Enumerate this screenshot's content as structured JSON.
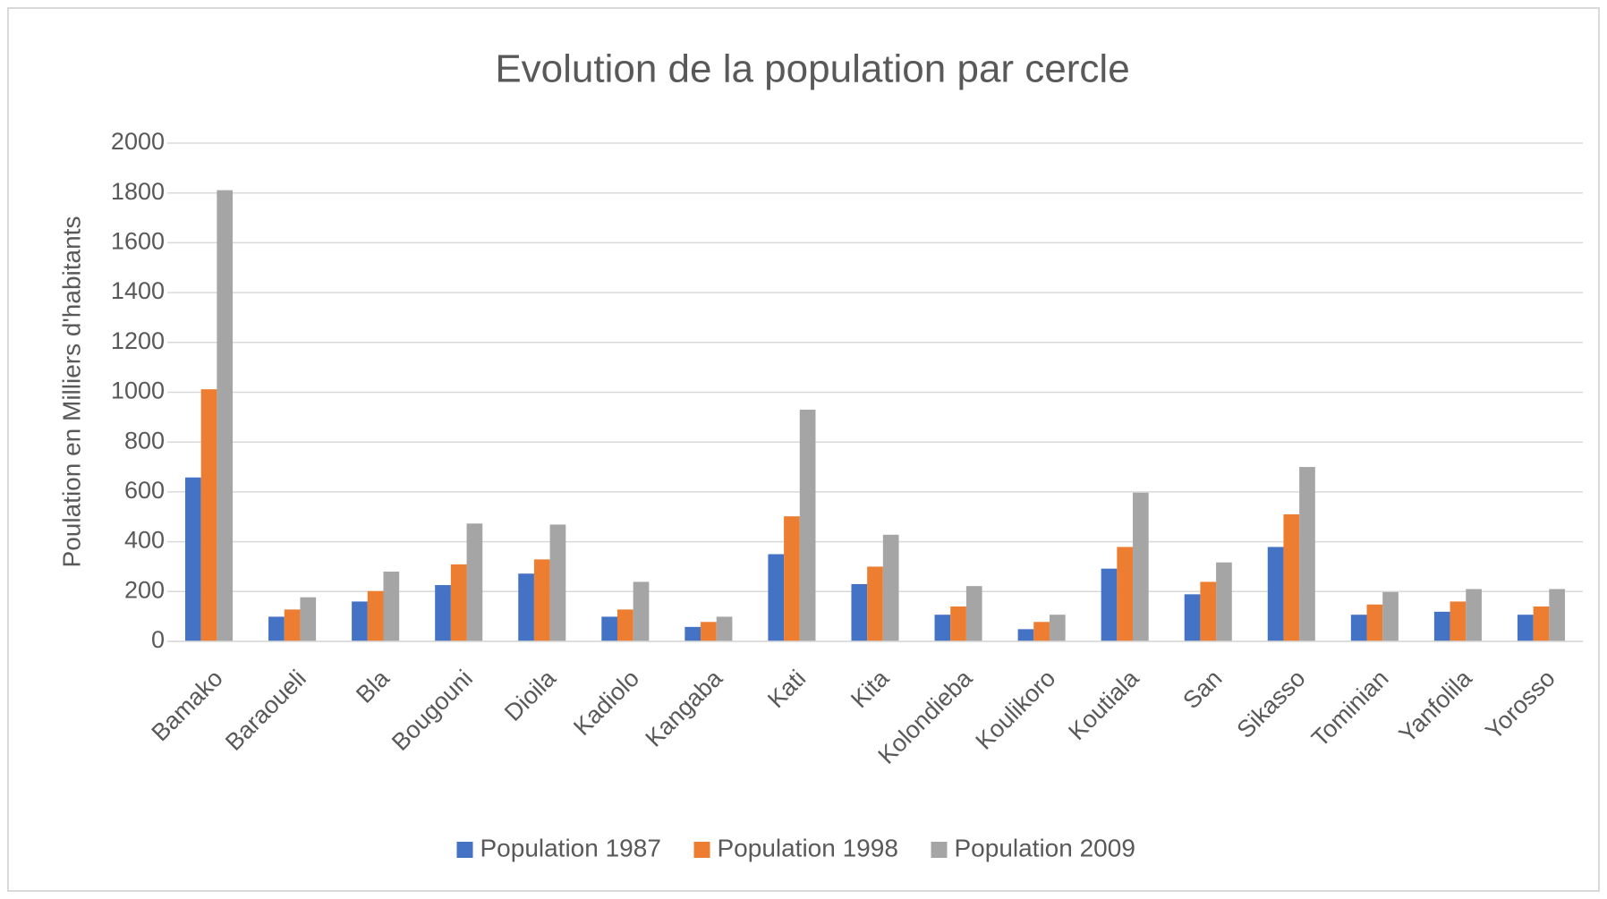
{
  "chart_data": {
    "type": "bar",
    "title": "Evolution de la population par cercle",
    "y_label": "Poulation en Milliers d'habitants",
    "categories": [
      "Bamako",
      "Baraoueli",
      "Bla",
      "Bougouni",
      "Dioila",
      "Kadiolo",
      "Kangaba",
      "Kati",
      "Kita",
      "Kolondieba",
      "Koulikoro",
      "Koutiala",
      "San",
      "Sikasso",
      "Tominian",
      "Yanfolila",
      "Yorosso"
    ],
    "series": [
      {
        "name": "Population 1987",
        "color": "#4472c4",
        "values": [
          658,
          99,
          160,
          226,
          272,
          99,
          58,
          350,
          230,
          107,
          49,
          292,
          189,
          379,
          107,
          119,
          107
        ]
      },
      {
        "name": "Population 1998",
        "color": "#ed7d31",
        "values": [
          1012,
          128,
          202,
          309,
          329,
          128,
          78,
          502,
          300,
          140,
          78,
          379,
          239,
          510,
          148,
          160,
          140
        ]
      },
      {
        "name": "Population 2009",
        "color": "#a5a5a5",
        "values": [
          1811,
          177,
          280,
          473,
          469,
          239,
          99,
          930,
          428,
          222,
          107,
          597,
          317,
          700,
          198,
          210,
          210
        ]
      }
    ],
    "ylim": [
      0,
      2000
    ],
    "yticks": [
      0,
      200,
      400,
      600,
      800,
      1000,
      1200,
      1400,
      1600,
      1800,
      2000
    ],
    "grid": true,
    "legend": "bottom"
  }
}
